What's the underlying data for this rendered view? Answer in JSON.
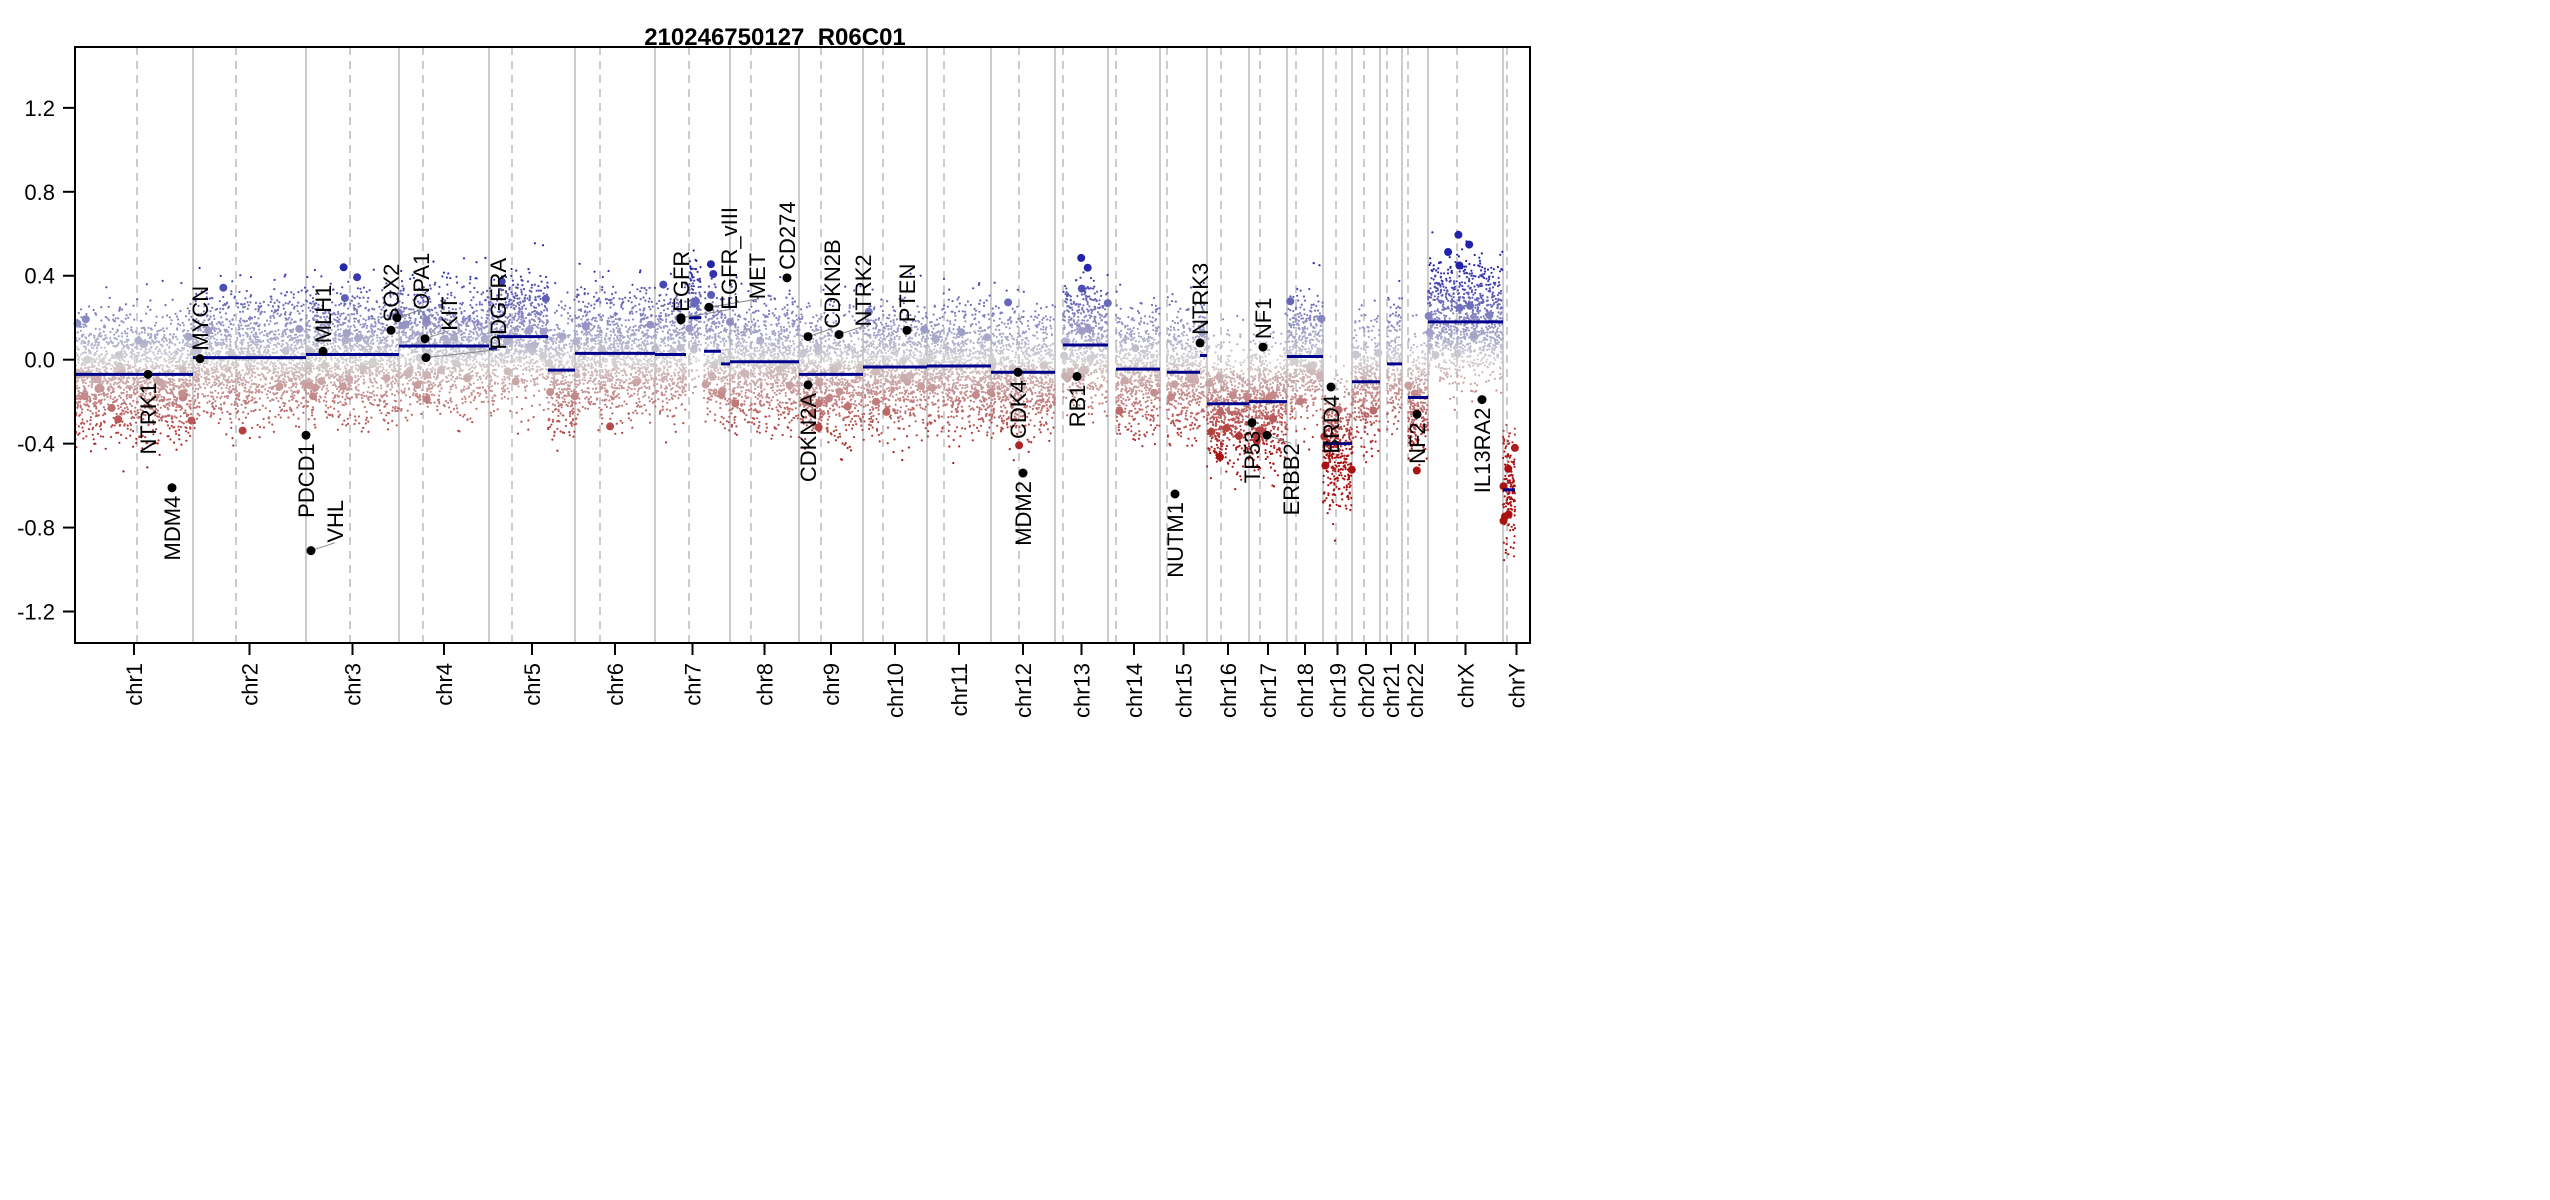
{
  "chart_data": {
    "type": "scatter",
    "title": "210246750127_R06C01",
    "xlabel": "",
    "ylabel": "",
    "ylim": [
      -1.35,
      1.49
    ],
    "xlim": [
      0,
      1455
    ],
    "x_units": "relative genome index",
    "y_ticks": [
      "-1.2",
      "-0.8",
      "-0.4",
      "0.0",
      "0.4",
      "0.8",
      "1.2"
    ],
    "y_tick_values": [
      -1.2,
      -0.8,
      -0.4,
      0.0,
      0.4,
      0.8,
      1.2
    ],
    "chromosomes": [
      {
        "name": "chr1",
        "start": 0,
        "end": 118,
        "centromere": 62
      },
      {
        "name": "chr2",
        "start": 118,
        "end": 231,
        "centromere": 161
      },
      {
        "name": "chr3",
        "start": 231,
        "end": 324,
        "centromere": 275
      },
      {
        "name": "chr4",
        "start": 324,
        "end": 414,
        "centromere": 348
      },
      {
        "name": "chr5",
        "start": 414,
        "end": 500,
        "centromere": 437
      },
      {
        "name": "chr6",
        "start": 500,
        "end": 580,
        "centromere": 525
      },
      {
        "name": "chr7",
        "start": 580,
        "end": 655,
        "centromere": 614
      },
      {
        "name": "chr8",
        "start": 655,
        "end": 724,
        "centromere": 676
      },
      {
        "name": "chr9",
        "start": 724,
        "end": 788,
        "centromere": 746
      },
      {
        "name": "chr10",
        "start": 788,
        "end": 852,
        "centromere": 808
      },
      {
        "name": "chr11",
        "start": 852,
        "end": 916,
        "centromere": 869
      },
      {
        "name": "chr12",
        "start": 916,
        "end": 980,
        "centromere": 944
      },
      {
        "name": "chr13",
        "start": 980,
        "end": 1033,
        "centromere": 988
      },
      {
        "name": "chr14",
        "start": 1033,
        "end": 1085,
        "centromere": 1041
      },
      {
        "name": "chr15",
        "start": 1085,
        "end": 1132,
        "centromere": 1092
      },
      {
        "name": "chr16",
        "start": 1132,
        "end": 1174,
        "centromere": 1146
      },
      {
        "name": "chr17",
        "start": 1174,
        "end": 1212,
        "centromere": 1185
      },
      {
        "name": "chr18",
        "start": 1212,
        "end": 1248,
        "centromere": 1221
      },
      {
        "name": "chr19",
        "start": 1248,
        "end": 1277,
        "centromere": 1261
      },
      {
        "name": "chr20",
        "start": 1277,
        "end": 1305,
        "centromere": 1289
      },
      {
        "name": "chr21",
        "start": 1305,
        "end": 1327,
        "centromere": 1312
      },
      {
        "name": "chr22",
        "start": 1327,
        "end": 1353,
        "centromere": 1333
      },
      {
        "name": "chrX",
        "start": 1353,
        "end": 1428,
        "centromere": 1382
      },
      {
        "name": "chrY",
        "start": 1428,
        "end": 1455,
        "centromere": 1432
      }
    ],
    "segments": [
      {
        "start": 0,
        "end": 118,
        "value": -0.07
      },
      {
        "start": 118,
        "end": 231,
        "value": 0.01
      },
      {
        "start": 231,
        "end": 324,
        "value": 0.025
      },
      {
        "start": 324,
        "end": 414,
        "value": 0.065
      },
      {
        "start": 414,
        "end": 422,
        "value": 0.05
      },
      {
        "start": 422,
        "end": 473,
        "value": 0.11
      },
      {
        "start": 473,
        "end": 500,
        "value": -0.05
      },
      {
        "start": 500,
        "end": 580,
        "value": 0.03
      },
      {
        "start": 580,
        "end": 611,
        "value": 0.025
      },
      {
        "start": 614,
        "end": 626,
        "value": 0.2
      },
      {
        "start": 629,
        "end": 646,
        "value": 0.04
      },
      {
        "start": 646,
        "end": 655,
        "value": -0.02
      },
      {
        "start": 655,
        "end": 724,
        "value": -0.01
      },
      {
        "start": 724,
        "end": 788,
        "value": -0.07
      },
      {
        "start": 788,
        "end": 852,
        "value": -0.035
      },
      {
        "start": 852,
        "end": 916,
        "value": -0.03
      },
      {
        "start": 916,
        "end": 980,
        "value": -0.06
      },
      {
        "start": 988,
        "end": 1033,
        "value": 0.07
      },
      {
        "start": 1041,
        "end": 1085,
        "value": -0.045
      },
      {
        "start": 1092,
        "end": 1125,
        "value": -0.06
      },
      {
        "start": 1125,
        "end": 1132,
        "value": 0.02
      },
      {
        "start": 1132,
        "end": 1174,
        "value": -0.21
      },
      {
        "start": 1174,
        "end": 1212,
        "value": -0.2
      },
      {
        "start": 1212,
        "end": 1248,
        "value": 0.015
      },
      {
        "start": 1248,
        "end": 1277,
        "value": -0.4
      },
      {
        "start": 1277,
        "end": 1305,
        "value": -0.105
      },
      {
        "start": 1312,
        "end": 1327,
        "value": -0.02
      },
      {
        "start": 1333,
        "end": 1353,
        "value": -0.18
      },
      {
        "start": 1353,
        "end": 1428,
        "value": 0.18
      },
      {
        "start": 1428,
        "end": 1440,
        "value": -0.62
      }
    ],
    "genes": [
      {
        "name": "NTRK1",
        "x": 73,
        "value": -0.07,
        "label": "below"
      },
      {
        "name": "MDM4",
        "x": 97,
        "value": -0.61,
        "label": "below"
      },
      {
        "name": "MYCN",
        "x": 125,
        "value": 0.005,
        "label": "above"
      },
      {
        "name": "PDCD1",
        "x": 231,
        "value": -0.36,
        "label": "below"
      },
      {
        "name": "VHL",
        "x": 236,
        "value": -0.91,
        "label": "above"
      },
      {
        "name": "MLH1",
        "x": 248,
        "value": 0.04,
        "label": "above"
      },
      {
        "name": "SOX2",
        "x": 316,
        "value": 0.14,
        "label": "above"
      },
      {
        "name": "OPA1",
        "x": 322,
        "value": 0.2,
        "label": "above"
      },
      {
        "name": "KIT",
        "x": 350,
        "value": 0.1,
        "label": "above"
      },
      {
        "name": "PDGFRA",
        "x": 351,
        "value": 0.01,
        "label": "above"
      },
      {
        "name": "EGFR",
        "x": 606,
        "value": 0.19,
        "label": "above"
      },
      {
        "name": "EGFR_vIII",
        "x": 606,
        "value": 0.2,
        "label": "above"
      },
      {
        "name": "MET",
        "x": 634,
        "value": 0.25,
        "label": "above"
      },
      {
        "name": "CD274",
        "x": 712,
        "value": 0.39,
        "label": "above"
      },
      {
        "name": "CDKN2B",
        "x": 733,
        "value": 0.11,
        "label": "above"
      },
      {
        "name": "CDKN2A",
        "x": 733,
        "value": -0.12,
        "label": "below"
      },
      {
        "name": "NTRK2",
        "x": 764,
        "value": 0.12,
        "label": "above"
      },
      {
        "name": "PTEN",
        "x": 832,
        "value": 0.14,
        "label": "above"
      },
      {
        "name": "CDK4",
        "x": 943,
        "value": -0.06,
        "label": "below"
      },
      {
        "name": "MDM2",
        "x": 948,
        "value": -0.54,
        "label": "below"
      },
      {
        "name": "RB1",
        "x": 1002,
        "value": -0.08,
        "label": "below"
      },
      {
        "name": "NUTM1",
        "x": 1100,
        "value": -0.64,
        "label": "below"
      },
      {
        "name": "NTRK3",
        "x": 1125,
        "value": 0.08,
        "label": "above"
      },
      {
        "name": "NF1",
        "x": 1188,
        "value": 0.06,
        "label": "above"
      },
      {
        "name": "TP53",
        "x": 1177,
        "value": -0.3,
        "label": "below"
      },
      {
        "name": "ERBB2",
        "x": 1192,
        "value": -0.36,
        "label": "below"
      },
      {
        "name": "BRD4",
        "x": 1256,
        "value": -0.13,
        "label": "below"
      },
      {
        "name": "NF2",
        "x": 1342,
        "value": -0.26,
        "label": "below"
      },
      {
        "name": "IL13RA2",
        "x": 1407,
        "value": -0.19,
        "label": "below"
      }
    ],
    "colors": {
      "gain": "#2222aa",
      "loss": "#aa1111",
      "neutral": "#d3d3d3",
      "segment": "#00008b",
      "gene": "#000000"
    },
    "grid": false
  }
}
